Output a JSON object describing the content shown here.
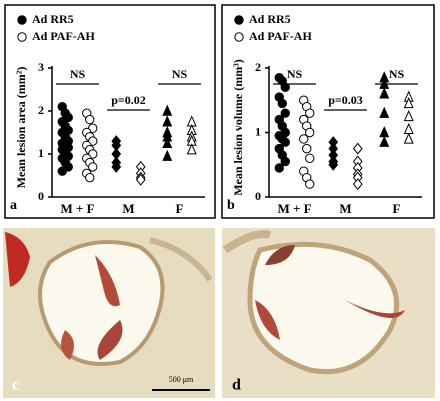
{
  "chart_data": [
    {
      "type": "scatter",
      "panel_label": "a",
      "y_label": "Mean lesion area (mm²)",
      "categories": [
        "M + F",
        "M",
        "F"
      ],
      "markers": [
        "circle",
        "diamond",
        "triangle"
      ],
      "ylim": [
        0,
        3
      ],
      "yticks": [
        0,
        1,
        2,
        3
      ],
      "series": [
        {
          "name": "Ad RR5",
          "color": "#000000",
          "filled": true,
          "values": [
            [
              2.1,
              1.95,
              1.85,
              1.75,
              1.65,
              1.55,
              1.5,
              1.4,
              1.3,
              1.25,
              1.2,
              1.15,
              1.1,
              1.0,
              0.95,
              0.9,
              0.8,
              0.7,
              0.6
            ],
            [
              1.3,
              1.2,
              1.0,
              0.8,
              0.7
            ],
            [
              2.0,
              1.75,
              1.5,
              1.4,
              1.25,
              0.95
            ]
          ]
        },
        {
          "name": "Ad PAF-AH",
          "color": "#000000",
          "filled": false,
          "values": [
            [
              1.95,
              1.8,
              1.6,
              1.5,
              1.4,
              1.3,
              1.2,
              1.1,
              1.0,
              0.9,
              0.8,
              0.7,
              0.55,
              0.45
            ],
            [
              0.7,
              0.55,
              0.45,
              0.4
            ],
            [
              1.75,
              1.55,
              1.4,
              1.3,
              1.1
            ]
          ]
        }
      ],
      "annotations": [
        "NS",
        "p=0.02",
        "NS"
      ]
    },
    {
      "type": "scatter",
      "panel_label": "b",
      "y_label": "Mean lesion volume (mm³)",
      "categories": [
        "M + F",
        "M",
        "F"
      ],
      "markers": [
        "circle",
        "diamond",
        "triangle"
      ],
      "ylim": [
        0,
        2
      ],
      "yticks": [
        0,
        1,
        2
      ],
      "series": [
        {
          "name": "Ad RR5",
          "color": "#000000",
          "filled": true,
          "values": [
            [
              1.85,
              1.8,
              1.7,
              1.55,
              1.45,
              1.3,
              1.2,
              1.1,
              1.0,
              0.95,
              0.9,
              0.85,
              0.75,
              0.65,
              0.55,
              0.45
            ],
            [
              0.85,
              0.75,
              0.65,
              0.55,
              0.5
            ],
            [
              1.85,
              1.75,
              1.6,
              1.3,
              1.0,
              0.85
            ]
          ]
        },
        {
          "name": "Ad PAF-AH",
          "color": "#000000",
          "filled": false,
          "values": [
            [
              1.5,
              1.4,
              1.3,
              1.2,
              1.1,
              1.0,
              0.9,
              0.75,
              0.6,
              0.4,
              0.3,
              0.2
            ],
            [
              0.75,
              0.55,
              0.45,
              0.35,
              0.3,
              0.2
            ],
            [
              1.55,
              1.45,
              1.25,
              1.05,
              0.9
            ]
          ]
        }
      ],
      "annotations": [
        "NS",
        "p=0.03",
        "NS"
      ]
    }
  ],
  "micrographs": [
    {
      "panel_label": "c",
      "scale_bar": "500 μm"
    },
    {
      "panel_label": "d"
    }
  ]
}
